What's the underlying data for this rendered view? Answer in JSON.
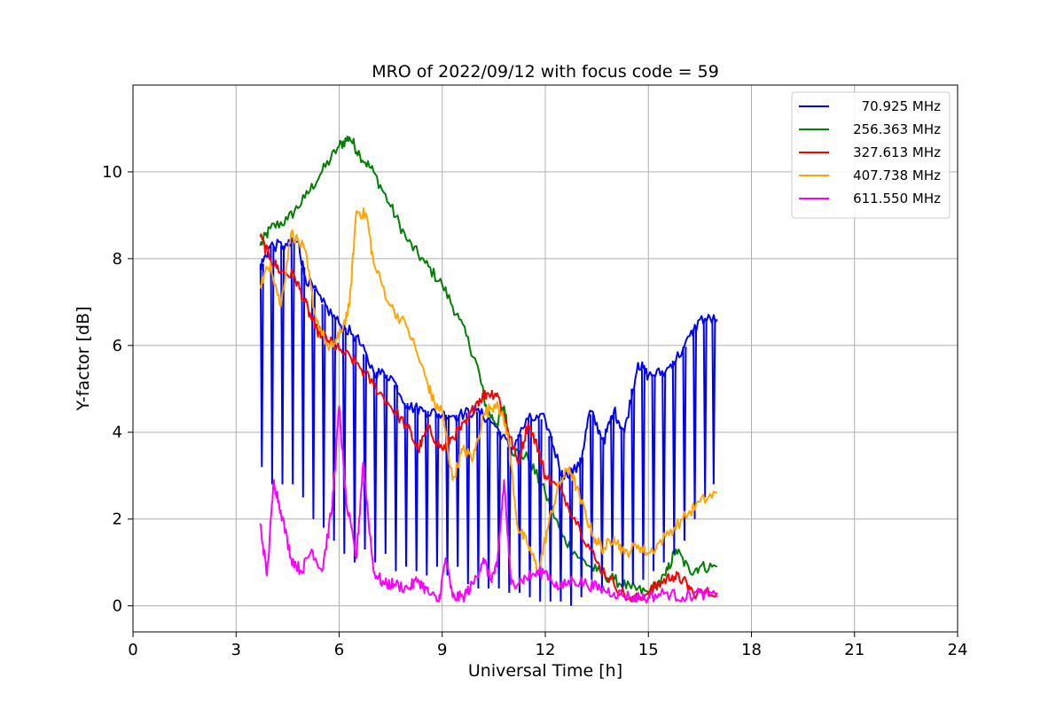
{
  "chart_data": {
    "type": "line",
    "title": "MRO of 2022/09/12 with focus code = 59",
    "xlabel": "Universal Time [h]",
    "ylabel": "Y-factor [dB]",
    "xlim": [
      0,
      24
    ],
    "ylim": [
      -0.6,
      12
    ],
    "x_ticks": [
      0,
      3,
      6,
      9,
      12,
      15,
      18,
      21,
      24
    ],
    "y_ticks": [
      0,
      2,
      4,
      6,
      8,
      10
    ],
    "grid": true,
    "legend_position": "top-right",
    "series": [
      {
        "name": "70.925 MHz",
        "color": "#0000ff",
        "dip_interval_h": 0.3,
        "points": [
          [
            3.7,
            7.8
          ],
          [
            4.0,
            8.3
          ],
          [
            4.5,
            8.3
          ],
          [
            4.8,
            8.4
          ],
          [
            5.0,
            7.6
          ],
          [
            5.5,
            7.0
          ],
          [
            6.0,
            6.5
          ],
          [
            6.5,
            6.2
          ],
          [
            7.0,
            5.4
          ],
          [
            7.5,
            5.3
          ],
          [
            8.0,
            4.6
          ],
          [
            8.5,
            4.5
          ],
          [
            9.0,
            4.4
          ],
          [
            9.5,
            4.4
          ],
          [
            10.0,
            4.5
          ],
          [
            10.5,
            4.2
          ],
          [
            11.0,
            3.6
          ],
          [
            11.5,
            4.3
          ],
          [
            12.0,
            4.3
          ],
          [
            12.5,
            3.0
          ],
          [
            13.0,
            3.2
          ],
          [
            13.3,
            4.5
          ],
          [
            13.7,
            3.8
          ],
          [
            14.0,
            4.5
          ],
          [
            14.3,
            4.0
          ],
          [
            14.7,
            5.6
          ],
          [
            15.0,
            5.3
          ],
          [
            15.5,
            5.4
          ],
          [
            16.0,
            5.9
          ],
          [
            16.5,
            6.6
          ],
          [
            17.0,
            6.6
          ]
        ],
        "dips": [
          [
            3.75,
            3.2
          ],
          [
            4.05,
            2.8
          ],
          [
            4.35,
            2.8
          ],
          [
            4.65,
            2.8
          ],
          [
            4.95,
            2.5
          ],
          [
            5.25,
            2.0
          ],
          [
            5.55,
            1.8
          ],
          [
            5.85,
            1.5
          ],
          [
            6.15,
            1.2
          ],
          [
            6.45,
            1.0
          ],
          [
            6.75,
            1.3
          ],
          [
            7.05,
            1.0
          ],
          [
            7.35,
            1.2
          ],
          [
            7.65,
            0.8
          ],
          [
            7.95,
            0.9
          ],
          [
            8.25,
            0.8
          ],
          [
            8.55,
            0.7
          ],
          [
            8.85,
            0.9
          ],
          [
            9.15,
            0.7
          ],
          [
            9.45,
            0.9
          ],
          [
            9.75,
            0.5
          ],
          [
            10.05,
            0.4
          ],
          [
            10.35,
            0.4
          ],
          [
            10.65,
            0.4
          ],
          [
            10.95,
            0.3
          ],
          [
            11.25,
            0.3
          ],
          [
            11.55,
            0.2
          ],
          [
            11.85,
            0.1
          ],
          [
            12.15,
            0.1
          ],
          [
            12.45,
            0.1
          ],
          [
            12.75,
            0.0
          ],
          [
            13.05,
            0.2
          ],
          [
            13.35,
            0.6
          ],
          [
            13.65,
            0.4
          ],
          [
            13.95,
            0.8
          ],
          [
            14.25,
            0.4
          ],
          [
            14.55,
            0.5
          ],
          [
            14.85,
            0.6
          ],
          [
            15.15,
            0.8
          ],
          [
            15.45,
            1.0
          ],
          [
            15.75,
            1.2
          ],
          [
            16.05,
            1.5
          ],
          [
            16.35,
            2.0
          ],
          [
            16.65,
            2.5
          ],
          [
            16.9,
            2.8
          ]
        ]
      },
      {
        "name": "256.363 MHz",
        "color": "#008000",
        "points": [
          [
            3.7,
            8.3
          ],
          [
            4.0,
            8.7
          ],
          [
            4.5,
            8.9
          ],
          [
            5.0,
            9.4
          ],
          [
            5.5,
            10.0
          ],
          [
            6.0,
            10.6
          ],
          [
            6.3,
            10.8
          ],
          [
            6.6,
            10.4
          ],
          [
            7.0,
            10.0
          ],
          [
            7.5,
            9.2
          ],
          [
            8.0,
            8.4
          ],
          [
            8.5,
            7.9
          ],
          [
            9.0,
            7.4
          ],
          [
            9.5,
            6.6
          ],
          [
            10.0,
            5.6
          ],
          [
            10.3,
            4.5
          ],
          [
            10.6,
            4.2
          ],
          [
            10.8,
            4.6
          ],
          [
            11.0,
            3.6
          ],
          [
            11.5,
            3.4
          ],
          [
            12.0,
            2.6
          ],
          [
            12.5,
            1.6
          ],
          [
            13.0,
            1.1
          ],
          [
            13.5,
            0.8
          ],
          [
            14.0,
            0.6
          ],
          [
            14.5,
            0.4
          ],
          [
            15.0,
            0.3
          ],
          [
            15.5,
            0.7
          ],
          [
            15.8,
            1.3
          ],
          [
            16.2,
            0.8
          ],
          [
            16.5,
            0.9
          ],
          [
            17.0,
            0.9
          ]
        ]
      },
      {
        "name": "327.613 MHz",
        "color": "#ff0000",
        "points": [
          [
            3.7,
            8.5
          ],
          [
            4.0,
            8.0
          ],
          [
            4.3,
            7.7
          ],
          [
            4.7,
            7.6
          ],
          [
            5.0,
            7.0
          ],
          [
            5.3,
            6.4
          ],
          [
            5.7,
            6.1
          ],
          [
            6.0,
            5.9
          ],
          [
            6.5,
            5.6
          ],
          [
            7.0,
            5.1
          ],
          [
            7.5,
            4.6
          ],
          [
            8.0,
            4.1
          ],
          [
            8.3,
            3.6
          ],
          [
            8.6,
            4.1
          ],
          [
            9.0,
            3.6
          ],
          [
            9.3,
            3.9
          ],
          [
            9.7,
            4.2
          ],
          [
            10.0,
            4.7
          ],
          [
            10.3,
            4.9
          ],
          [
            10.6,
            4.9
          ],
          [
            10.9,
            4.1
          ],
          [
            11.2,
            3.3
          ],
          [
            11.5,
            4.2
          ],
          [
            11.8,
            3.6
          ],
          [
            12.0,
            3.0
          ],
          [
            12.5,
            2.6
          ],
          [
            13.0,
            1.8
          ],
          [
            13.5,
            1.0
          ],
          [
            14.0,
            0.5
          ],
          [
            14.5,
            0.1
          ],
          [
            15.0,
            0.3
          ],
          [
            15.3,
            0.5
          ],
          [
            15.7,
            0.7
          ],
          [
            16.0,
            0.6
          ],
          [
            16.3,
            0.3
          ],
          [
            17.0,
            0.3
          ]
        ]
      },
      {
        "name": "407.738 MHz",
        "color": "#ffa500",
        "points": [
          [
            3.7,
            7.4
          ],
          [
            4.0,
            7.9
          ],
          [
            4.3,
            6.9
          ],
          [
            4.6,
            8.6
          ],
          [
            5.0,
            8.2
          ],
          [
            5.3,
            6.7
          ],
          [
            5.7,
            5.9
          ],
          [
            6.0,
            6.2
          ],
          [
            6.3,
            6.9
          ],
          [
            6.5,
            9.1
          ],
          [
            6.8,
            9.0
          ],
          [
            7.0,
            7.9
          ],
          [
            7.5,
            6.9
          ],
          [
            8.0,
            6.4
          ],
          [
            8.5,
            5.3
          ],
          [
            8.8,
            4.6
          ],
          [
            9.0,
            4.5
          ],
          [
            9.3,
            2.9
          ],
          [
            9.6,
            3.6
          ],
          [
            9.9,
            3.4
          ],
          [
            10.2,
            4.4
          ],
          [
            10.6,
            4.7
          ],
          [
            10.9,
            4.0
          ],
          [
            11.2,
            1.8
          ],
          [
            11.5,
            1.4
          ],
          [
            11.8,
            0.8
          ],
          [
            12.1,
            1.9
          ],
          [
            12.4,
            2.8
          ],
          [
            12.7,
            3.2
          ],
          [
            13.0,
            2.5
          ],
          [
            13.4,
            1.6
          ],
          [
            13.7,
            1.3
          ],
          [
            14.0,
            1.6
          ],
          [
            14.3,
            1.2
          ],
          [
            14.7,
            1.4
          ],
          [
            15.0,
            1.2
          ],
          [
            15.5,
            1.6
          ],
          [
            16.0,
            2.0
          ],
          [
            16.5,
            2.4
          ],
          [
            17.0,
            2.6
          ]
        ]
      },
      {
        "name": "611.550 MHz",
        "color": "#ff00ff",
        "points": [
          [
            3.7,
            1.9
          ],
          [
            3.9,
            0.7
          ],
          [
            4.1,
            2.9
          ],
          [
            4.3,
            2.2
          ],
          [
            4.6,
            1.1
          ],
          [
            4.9,
            0.8
          ],
          [
            5.2,
            1.3
          ],
          [
            5.5,
            0.8
          ],
          [
            5.8,
            2.3
          ],
          [
            6.0,
            4.6
          ],
          [
            6.2,
            2.4
          ],
          [
            6.5,
            1.1
          ],
          [
            6.7,
            3.3
          ],
          [
            7.0,
            0.8
          ],
          [
            7.3,
            0.5
          ],
          [
            7.6,
            0.5
          ],
          [
            8.0,
            0.4
          ],
          [
            8.3,
            0.6
          ],
          [
            8.6,
            0.3
          ],
          [
            8.9,
            0.1
          ],
          [
            9.1,
            1.1
          ],
          [
            9.3,
            0.2
          ],
          [
            9.6,
            0.2
          ],
          [
            9.9,
            0.5
          ],
          [
            10.2,
            1.1
          ],
          [
            10.4,
            0.6
          ],
          [
            10.6,
            0.9
          ],
          [
            10.8,
            2.9
          ],
          [
            11.0,
            0.5
          ],
          [
            11.3,
            0.6
          ],
          [
            11.6,
            0.7
          ],
          [
            12.0,
            0.8
          ],
          [
            12.4,
            0.4
          ],
          [
            12.8,
            0.6
          ],
          [
            13.2,
            0.5
          ],
          [
            13.6,
            0.4
          ],
          [
            14.0,
            0.3
          ],
          [
            14.5,
            0.2
          ],
          [
            15.0,
            0.2
          ],
          [
            15.5,
            0.3
          ],
          [
            16.0,
            0.2
          ],
          [
            16.5,
            0.3
          ],
          [
            17.0,
            0.2
          ]
        ]
      }
    ]
  }
}
